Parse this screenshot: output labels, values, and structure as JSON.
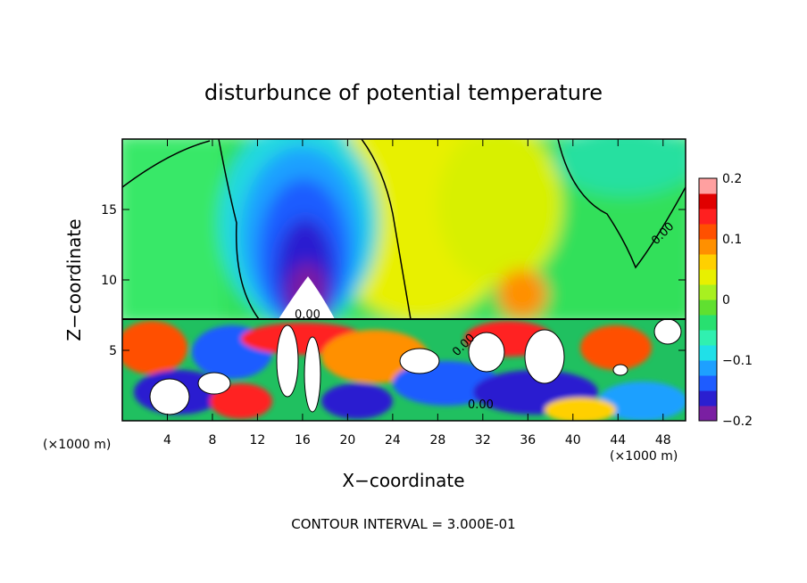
{
  "chart_data": {
    "type": "heatmap",
    "title": "disturbunce of potential temperature",
    "xlabel": "X−coordinate",
    "ylabel": "Z−coordinate",
    "x_unit_left": "(×1000 m)",
    "x_unit_right": "(×1000 m)",
    "xlim": [
      0,
      50
    ],
    "ylim": [
      0,
      20
    ],
    "x_ticks": [
      4,
      8,
      12,
      16,
      20,
      24,
      28,
      32,
      36,
      40,
      44,
      48
    ],
    "x_tick_labels": [
      "4",
      "8",
      "12",
      "16",
      "20",
      "24",
      "28",
      "32",
      "36",
      "40",
      "44",
      "48"
    ],
    "y_ticks": [
      5,
      10,
      15
    ],
    "y_tick_labels": [
      "5",
      "10",
      "15"
    ],
    "colorbar": {
      "range": [
        -0.2,
        0.2
      ],
      "levels": [
        -0.2,
        -0.1,
        0,
        0.1,
        0.2
      ],
      "tick_labels": [
        "−0.2",
        "−0.1",
        "0",
        "0.1",
        "0.2"
      ],
      "colors": [
        "#7a1fa2",
        "#2a1fd0",
        "#1e5cff",
        "#1ea0ff",
        "#20e0e8",
        "#30f0b0",
        "#28e070",
        "#60e030",
        "#a8f020",
        "#e8f000",
        "#ffd000",
        "#ff9000",
        "#ff5000",
        "#ff2020",
        "#e00000",
        "#ffa0a0"
      ]
    },
    "contour_labels": [
      "0.00",
      "0.00",
      "0.00",
      "0.00"
    ],
    "footer": "CONTOUR INTERVAL =  3.000E-01"
  }
}
